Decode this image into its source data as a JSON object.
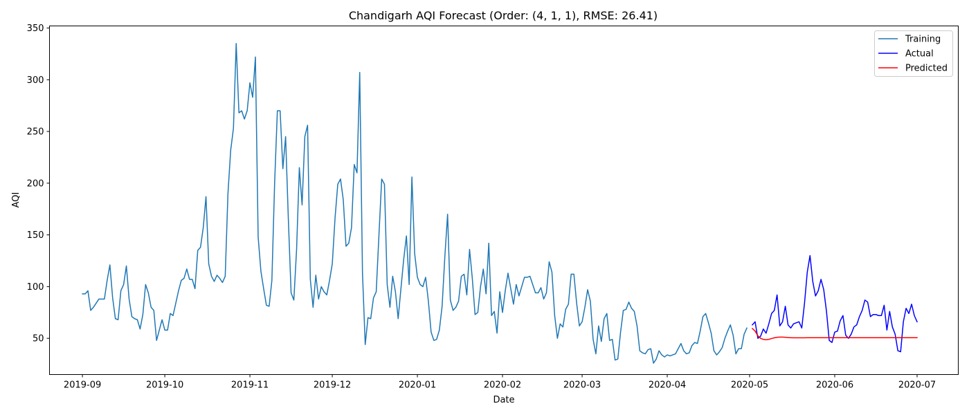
{
  "chart_data": {
    "type": "line",
    "title": "Chandigarh AQI Forecast (Order: (4, 1, 1), RMSE: 26.41)",
    "xlabel": "Date",
    "ylabel": "AQI",
    "x_axis_type": "date",
    "xlim": [
      "2019-08-20",
      "2020-07-16"
    ],
    "ylim": [
      15,
      352
    ],
    "x_ticks": [
      "2019-09-01",
      "2019-10-01",
      "2019-11-01",
      "2019-12-01",
      "2020-01-01",
      "2020-02-01",
      "2020-03-01",
      "2020-04-01",
      "2020-05-01",
      "2020-06-01",
      "2020-07-01"
    ],
    "x_tick_labels": [
      "2019-09",
      "2019-10",
      "2019-11",
      "2019-12",
      "2020-01",
      "2020-02",
      "2020-03",
      "2020-04",
      "2020-05",
      "2020-06",
      "2020-07"
    ],
    "y_ticks": [
      50,
      100,
      150,
      200,
      250,
      300,
      350
    ],
    "y_tick_labels": [
      "50",
      "100",
      "150",
      "200",
      "250",
      "300",
      "350"
    ],
    "grid": false,
    "legend_position": "top-right",
    "series": [
      {
        "name": "Training",
        "color": "#1f77b4",
        "x_start": "2019-09-01",
        "values": [
          93,
          93,
          96,
          77,
          80,
          84,
          88,
          88,
          88,
          106,
          121,
          89,
          69,
          68,
          96,
          102,
          120,
          88,
          71,
          69,
          68,
          59,
          73,
          102,
          94,
          80,
          77,
          48,
          58,
          68,
          58,
          58,
          74,
          72,
          84,
          96,
          106,
          108,
          117,
          107,
          107,
          98,
          135,
          138,
          157,
          187,
          122,
          110,
          105,
          111,
          108,
          104,
          110,
          190,
          232,
          253,
          335,
          268,
          270,
          262,
          270,
          297,
          283,
          322,
          148,
          115,
          98,
          82,
          81,
          106,
          200,
          270,
          270,
          214,
          245,
          165,
          94,
          87,
          136,
          215,
          179,
          245,
          256,
          107,
          80,
          111,
          88,
          100,
          95,
          92,
          106,
          122,
          166,
          199,
          204,
          184,
          139,
          142,
          157,
          218,
          210,
          307,
          113,
          44,
          70,
          69,
          89,
          95,
          150,
          204,
          199,
          102,
          80,
          110,
          95,
          69,
          98,
          126,
          149,
          102,
          206,
          132,
          109,
          102,
          100,
          109,
          86,
          56,
          48,
          49,
          58,
          81,
          129,
          170,
          87,
          77,
          80,
          86,
          110,
          112,
          92,
          136,
          108,
          73,
          75,
          100,
          117,
          93,
          142,
          72,
          76,
          55,
          95,
          75,
          96,
          113,
          98,
          83,
          102,
          91,
          100,
          109,
          109,
          110,
          102,
          94,
          94,
          99,
          88,
          94,
          124,
          114,
          72,
          50,
          64,
          61,
          78,
          83,
          112,
          112,
          84,
          62,
          66,
          80,
          97,
          86,
          49,
          35,
          62,
          47,
          69,
          74,
          48,
          49,
          29,
          30,
          56,
          77,
          78,
          85,
          79,
          76,
          62,
          38,
          36,
          35,
          39,
          40,
          26,
          30,
          38,
          34,
          32,
          34,
          33,
          34,
          35,
          40,
          45,
          38,
          35,
          36,
          43,
          46,
          45,
          57,
          71,
          74,
          65,
          55,
          38,
          34,
          37,
          41,
          50,
          57,
          63,
          53,
          35,
          40,
          40,
          54,
          60
        ]
      },
      {
        "name": "Actual",
        "color": "#0000ff",
        "x_start": "2020-05-02",
        "values": [
          63,
          66,
          50,
          52,
          59,
          55,
          64,
          74,
          77,
          92,
          62,
          66,
          81,
          63,
          60,
          64,
          65,
          66,
          60,
          84,
          114,
          130,
          105,
          91,
          96,
          107,
          97,
          76,
          48,
          46,
          56,
          57,
          67,
          72,
          53,
          50,
          54,
          61,
          63,
          71,
          77,
          87,
          85,
          71,
          73,
          73,
          72,
          72,
          82,
          58,
          76,
          61,
          54,
          38,
          37,
          66,
          79,
          74,
          83,
          72,
          66
        ]
      },
      {
        "name": "Predicted",
        "color": "#ff0000",
        "x_start": "2020-05-02",
        "values": [
          59.5,
          57.0,
          52.5,
          50.0,
          49.0,
          48.7,
          49.0,
          49.8,
          50.5,
          51.0,
          51.2,
          51.2,
          51.0,
          50.8,
          50.6,
          50.5,
          50.5,
          50.5,
          50.5,
          50.5,
          50.6,
          50.6,
          50.6,
          50.6,
          50.6,
          50.6,
          50.6,
          50.6,
          50.6,
          50.6,
          50.6,
          50.6,
          50.6,
          50.6,
          50.6,
          50.6,
          50.6,
          50.6,
          50.6,
          50.6,
          50.6,
          50.6,
          50.6,
          50.6,
          50.6,
          50.6,
          50.6,
          50.6,
          50.6,
          50.6,
          50.6,
          50.6,
          50.6,
          50.6,
          50.6,
          50.6,
          50.6,
          50.6,
          50.6,
          50.6,
          50.6
        ]
      }
    ]
  }
}
